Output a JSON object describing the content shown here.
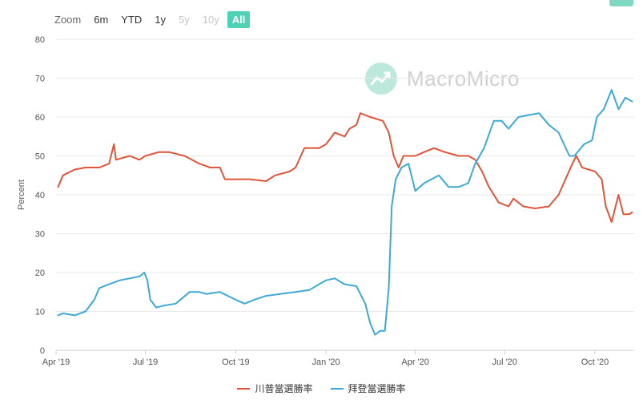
{
  "zoom": {
    "label": "Zoom",
    "buttons": [
      {
        "label": "6m",
        "state": "normal"
      },
      {
        "label": "YTD",
        "state": "normal"
      },
      {
        "label": "1y",
        "state": "normal"
      },
      {
        "label": "5y",
        "state": "disabled"
      },
      {
        "label": "10y",
        "state": "disabled"
      },
      {
        "label": "All",
        "state": "active"
      }
    ]
  },
  "watermark": {
    "text": "MacroMicro",
    "icon": "chart-trend-logo-icon",
    "color": "#d0d0d0"
  },
  "colors": {
    "trump": "#e0553a",
    "biden": "#3fa9d6",
    "active": "#4fd1b5"
  },
  "chart_data": {
    "type": "line",
    "title": "",
    "xlabel": "",
    "ylabel": "Percent",
    "ylim": [
      0,
      80
    ],
    "yticks": [
      0,
      10,
      20,
      30,
      40,
      50,
      60,
      70,
      80
    ],
    "xlim": [
      "2019-04-01",
      "2020-11-10"
    ],
    "xticks": [
      {
        "label": "Apr '19",
        "date": "2019-04-01"
      },
      {
        "label": "Jul '19",
        "date": "2019-07-01"
      },
      {
        "label": "Oct '19",
        "date": "2019-10-01"
      },
      {
        "label": "Jan '20",
        "date": "2020-01-01"
      },
      {
        "label": "Apr '20",
        "date": "2020-04-01"
      },
      {
        "label": "Jul '20",
        "date": "2020-07-01"
      },
      {
        "label": "Oct '20",
        "date": "2020-10-01"
      }
    ],
    "grid": true,
    "legend_position": "bottom",
    "series": [
      {
        "name": "川普當選勝率",
        "color": "#e0553a",
        "points": [
          [
            "2019-04-03",
            42
          ],
          [
            "2019-04-08",
            45
          ],
          [
            "2019-04-20",
            46.5
          ],
          [
            "2019-05-01",
            47
          ],
          [
            "2019-05-15",
            47
          ],
          [
            "2019-05-25",
            48
          ],
          [
            "2019-05-30",
            53
          ],
          [
            "2019-06-01",
            49
          ],
          [
            "2019-06-15",
            50
          ],
          [
            "2019-06-25",
            49
          ],
          [
            "2019-07-01",
            50
          ],
          [
            "2019-07-15",
            51
          ],
          [
            "2019-07-25",
            51
          ],
          [
            "2019-08-10",
            50
          ],
          [
            "2019-08-25",
            48
          ],
          [
            "2019-09-05",
            47
          ],
          [
            "2019-09-15",
            47
          ],
          [
            "2019-09-20",
            44
          ],
          [
            "2019-10-01",
            44
          ],
          [
            "2019-10-15",
            44
          ],
          [
            "2019-11-01",
            43.5
          ],
          [
            "2019-11-10",
            45
          ],
          [
            "2019-11-25",
            46
          ],
          [
            "2019-12-01",
            47
          ],
          [
            "2019-12-10",
            52
          ],
          [
            "2019-12-25",
            52
          ],
          [
            "2020-01-01",
            53
          ],
          [
            "2020-01-10",
            56
          ],
          [
            "2020-01-20",
            55
          ],
          [
            "2020-01-25",
            57
          ],
          [
            "2020-02-01",
            58
          ],
          [
            "2020-02-05",
            61
          ],
          [
            "2020-02-15",
            60
          ],
          [
            "2020-02-28",
            59
          ],
          [
            "2020-03-05",
            56
          ],
          [
            "2020-03-10",
            50
          ],
          [
            "2020-03-15",
            47
          ],
          [
            "2020-03-20",
            50
          ],
          [
            "2020-04-01",
            50
          ],
          [
            "2020-04-10",
            51
          ],
          [
            "2020-04-20",
            52
          ],
          [
            "2020-05-01",
            51
          ],
          [
            "2020-05-15",
            50
          ],
          [
            "2020-05-25",
            50
          ],
          [
            "2020-06-01",
            49
          ],
          [
            "2020-06-08",
            46
          ],
          [
            "2020-06-15",
            42
          ],
          [
            "2020-06-25",
            38
          ],
          [
            "2020-07-05",
            37
          ],
          [
            "2020-07-10",
            39
          ],
          [
            "2020-07-20",
            37
          ],
          [
            "2020-08-01",
            36.5
          ],
          [
            "2020-08-15",
            37
          ],
          [
            "2020-08-25",
            40
          ],
          [
            "2020-09-01",
            44
          ],
          [
            "2020-09-08",
            48
          ],
          [
            "2020-09-12",
            50
          ],
          [
            "2020-09-18",
            47
          ],
          [
            "2020-10-01",
            46
          ],
          [
            "2020-10-08",
            44
          ],
          [
            "2020-10-12",
            37
          ],
          [
            "2020-10-18",
            33
          ],
          [
            "2020-10-25",
            40
          ],
          [
            "2020-10-30",
            35
          ],
          [
            "2020-11-05",
            35
          ],
          [
            "2020-11-08",
            35.5
          ]
        ]
      },
      {
        "name": "拜登當選勝率",
        "color": "#3fa9d6",
        "points": [
          [
            "2019-04-03",
            9
          ],
          [
            "2019-04-08",
            9.5
          ],
          [
            "2019-04-20",
            9
          ],
          [
            "2019-05-01",
            10
          ],
          [
            "2019-05-10",
            13
          ],
          [
            "2019-05-15",
            16
          ],
          [
            "2019-05-25",
            17
          ],
          [
            "2019-06-05",
            18
          ],
          [
            "2019-06-15",
            18.5
          ],
          [
            "2019-06-25",
            19
          ],
          [
            "2019-06-30",
            20
          ],
          [
            "2019-07-03",
            18
          ],
          [
            "2019-07-06",
            13
          ],
          [
            "2019-07-12",
            11
          ],
          [
            "2019-07-20",
            11.5
          ],
          [
            "2019-08-01",
            12
          ],
          [
            "2019-08-15",
            15
          ],
          [
            "2019-08-25",
            15
          ],
          [
            "2019-09-01",
            14.5
          ],
          [
            "2019-09-15",
            15
          ],
          [
            "2019-10-01",
            13
          ],
          [
            "2019-10-10",
            12
          ],
          [
            "2019-10-20",
            13
          ],
          [
            "2019-11-01",
            14
          ],
          [
            "2019-11-15",
            14.5
          ],
          [
            "2019-12-01",
            15
          ],
          [
            "2019-12-15",
            15.5
          ],
          [
            "2019-12-25",
            17
          ],
          [
            "2020-01-01",
            18
          ],
          [
            "2020-01-10",
            18.5
          ],
          [
            "2020-01-20",
            17
          ],
          [
            "2020-02-01",
            16.5
          ],
          [
            "2020-02-10",
            12
          ],
          [
            "2020-02-15",
            7
          ],
          [
            "2020-02-20",
            4
          ],
          [
            "2020-02-25",
            5
          ],
          [
            "2020-03-01",
            5
          ],
          [
            "2020-03-05",
            16
          ],
          [
            "2020-03-08",
            37
          ],
          [
            "2020-03-12",
            44
          ],
          [
            "2020-03-18",
            47
          ],
          [
            "2020-03-25",
            48
          ],
          [
            "2020-04-01",
            41
          ],
          [
            "2020-04-10",
            43
          ],
          [
            "2020-04-25",
            45
          ],
          [
            "2020-05-05",
            42
          ],
          [
            "2020-05-15",
            42
          ],
          [
            "2020-05-25",
            43
          ],
          [
            "2020-06-01",
            48
          ],
          [
            "2020-06-10",
            52
          ],
          [
            "2020-06-20",
            59
          ],
          [
            "2020-06-28",
            59
          ],
          [
            "2020-07-05",
            57
          ],
          [
            "2020-07-15",
            60
          ],
          [
            "2020-07-25",
            60.5
          ],
          [
            "2020-08-05",
            61
          ],
          [
            "2020-08-15",
            58
          ],
          [
            "2020-08-25",
            56
          ],
          [
            "2020-09-05",
            50
          ],
          [
            "2020-09-10",
            50
          ],
          [
            "2020-09-20",
            53
          ],
          [
            "2020-09-28",
            54
          ],
          [
            "2020-10-03",
            60
          ],
          [
            "2020-10-10",
            62
          ],
          [
            "2020-10-18",
            67
          ],
          [
            "2020-10-25",
            62
          ],
          [
            "2020-11-01",
            65
          ],
          [
            "2020-11-08",
            64
          ]
        ]
      }
    ]
  }
}
